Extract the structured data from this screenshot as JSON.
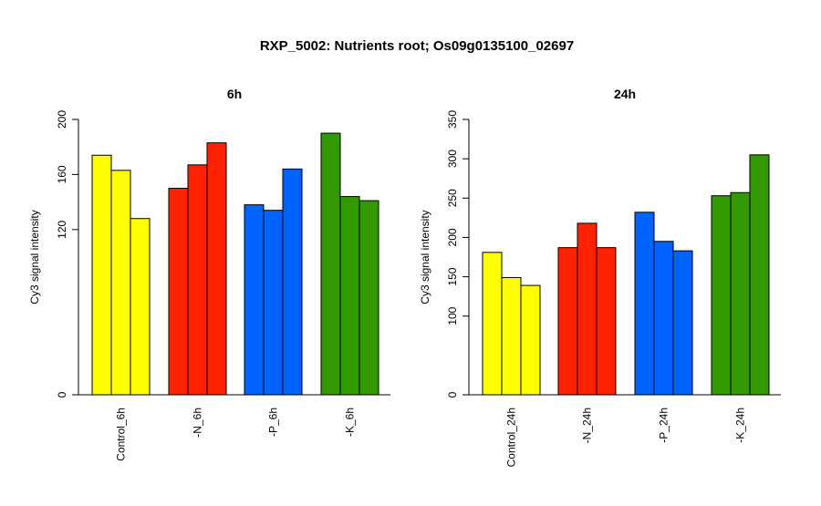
{
  "figure": {
    "title": "RXP_5002: Nutrients root; Os09g0135100_02697"
  },
  "chart_data": [
    {
      "type": "bar",
      "title": "6h",
      "ylabel": "Cy3 signal intensity",
      "xlabel": "",
      "ylim": [
        0,
        200
      ],
      "yticks": [
        0,
        120,
        160,
        200
      ],
      "groups": [
        {
          "label": "Control_6h",
          "color": "#ffff00",
          "values": [
            174,
            163,
            128
          ]
        },
        {
          "label": "-N_6h",
          "color": "#ff2200",
          "values": [
            150,
            167,
            183
          ]
        },
        {
          "label": "-P_6h",
          "color": "#0062ff",
          "values": [
            138,
            134,
            164
          ]
        },
        {
          "label": "-K_6h",
          "color": "#339900",
          "values": [
            190,
            144,
            141
          ]
        }
      ]
    },
    {
      "type": "bar",
      "title": "24h",
      "ylabel": "Cy3 signal intensity",
      "xlabel": "",
      "ylim": [
        0,
        350
      ],
      "yticks": [
        0,
        100,
        150,
        200,
        250,
        300,
        350
      ],
      "groups": [
        {
          "label": "Control_24h",
          "color": "#ffff00",
          "values": [
            181,
            149,
            139
          ]
        },
        {
          "label": "-N_24h",
          "color": "#ff2200",
          "values": [
            187,
            218,
            187
          ]
        },
        {
          "label": "-P_24h",
          "color": "#0062ff",
          "values": [
            232,
            195,
            183
          ]
        },
        {
          "label": "-K_24h",
          "color": "#339900",
          "values": [
            253,
            257,
            305
          ]
        }
      ]
    }
  ]
}
